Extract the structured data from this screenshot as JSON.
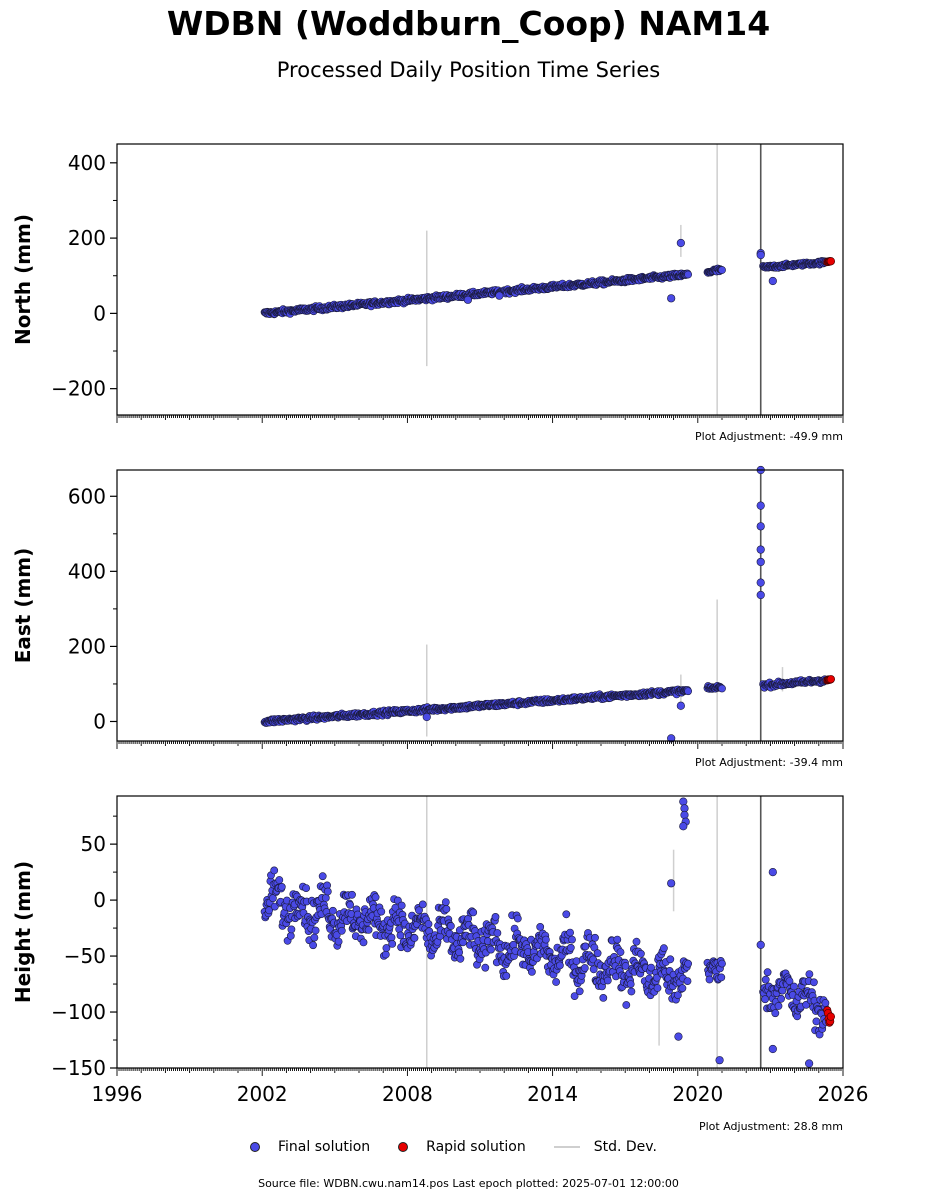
{
  "title": "WDBN (Woddburn_Coop) NAM14",
  "subtitle": "Processed Daily Position Time Series",
  "legend": {
    "final": "Final solution",
    "rapid": "Rapid solution",
    "std": "Std. Dev."
  },
  "footer": "Source file: WDBN.cwu.nam14.pos  Last epoch plotted: 2025-07-01 12:00:00",
  "colors": {
    "final": "#4a4ae6",
    "rapid": "#e60000",
    "stddev": "#cfcfcf",
    "event_line": "#555555"
  },
  "chart_data": [
    {
      "type": "scatter",
      "ylabel": "North (mm)",
      "xlim": [
        1996,
        2026
      ],
      "ylim": [
        -270,
        450
      ],
      "yticks": [
        -200,
        0,
        200,
        400
      ],
      "show_xtick_labels": false,
      "adjustment": "Plot Adjustment: -49.9 mm",
      "event_lines": [
        2022.6
      ],
      "final_segments": [
        {
          "x0": 2002.1,
          "x1": 2019.6,
          "y0": 0,
          "y1": 103,
          "scatter": 4
        },
        {
          "x0": 2020.4,
          "x1": 2021.0,
          "y0": 110,
          "y1": 116,
          "scatter": 4
        },
        {
          "x0": 2022.7,
          "x1": 2025.3,
          "y0": 122,
          "y1": 136,
          "scatter": 3
        }
      ],
      "rapid_segment": {
        "x0": 2025.35,
        "x1": 2025.5,
        "y0": 137,
        "y1": 139,
        "scatter": 1
      },
      "outliers": [
        {
          "x": 2019.3,
          "y": 187
        },
        {
          "x": 2018.9,
          "y": 40
        },
        {
          "x": 2022.6,
          "y": 160
        },
        {
          "x": 2022.6,
          "y": 155
        },
        {
          "x": 2023.1,
          "y": 86
        },
        {
          "x": 2010.5,
          "y": 36
        },
        {
          "x": 2011.8,
          "y": 47
        }
      ],
      "stddev_bars": [
        {
          "x": 2008.8,
          "lo": -140,
          "hi": 220
        },
        {
          "x": 2020.8,
          "lo": -270,
          "hi": 450
        },
        {
          "x": 2019.3,
          "lo": 150,
          "hi": 235
        }
      ]
    },
    {
      "type": "scatter",
      "ylabel": "East (mm)",
      "xlim": [
        1996,
        2026
      ],
      "ylim": [
        -52,
        670
      ],
      "yticks": [
        0,
        200,
        400,
        600
      ],
      "show_xtick_labels": false,
      "adjustment": "Plot Adjustment: -39.4 mm",
      "event_lines": [
        2022.6
      ],
      "final_segments": [
        {
          "x0": 2002.1,
          "x1": 2019.6,
          "y0": 0,
          "y1": 82,
          "scatter": 4
        },
        {
          "x0": 2020.4,
          "x1": 2021.0,
          "y0": 88,
          "y1": 92,
          "scatter": 3
        },
        {
          "x0": 2022.7,
          "x1": 2025.3,
          "y0": 96,
          "y1": 110,
          "scatter": 4
        }
      ],
      "rapid_segment": {
        "x0": 2025.35,
        "x1": 2025.5,
        "y0": 110,
        "y1": 112,
        "scatter": 1
      },
      "outliers": [
        {
          "x": 2022.6,
          "y": 670
        },
        {
          "x": 2022.6,
          "y": 575
        },
        {
          "x": 2022.6,
          "y": 520
        },
        {
          "x": 2022.6,
          "y": 458
        },
        {
          "x": 2022.6,
          "y": 425
        },
        {
          "x": 2022.6,
          "y": 370
        },
        {
          "x": 2022.6,
          "y": 337
        },
        {
          "x": 2019.3,
          "y": 42
        },
        {
          "x": 2018.9,
          "y": -45
        },
        {
          "x": 2008.8,
          "y": 12
        }
      ],
      "stddev_bars": [
        {
          "x": 2008.8,
          "lo": -40,
          "hi": 205
        },
        {
          "x": 2020.8,
          "lo": -52,
          "hi": 325
        },
        {
          "x": 2019.3,
          "lo": 30,
          "hi": 125
        },
        {
          "x": 2023.5,
          "lo": 80,
          "hi": 145
        }
      ]
    },
    {
      "type": "scatter",
      "ylabel": "Height (mm)",
      "xlim": [
        1996,
        2026
      ],
      "ylim": [
        -150,
        93
      ],
      "yticks": [
        -150,
        -100,
        -50,
        0,
        50
      ],
      "xticks": [
        1996,
        2002,
        2008,
        2014,
        2020,
        2026
      ],
      "show_xtick_labels": true,
      "adjustment": "Plot Adjustment: 28.8 mm",
      "event_lines": [
        2022.6
      ],
      "final_segments": [
        {
          "x0": 2002.1,
          "x1": 2019.6,
          "y0": 0,
          "y1": -72,
          "scatter": 13,
          "seasonal": 12
        },
        {
          "x0": 2020.4,
          "x1": 2021.0,
          "y0": -60,
          "y1": -65,
          "scatter": 9,
          "seasonal": 0
        },
        {
          "x0": 2022.7,
          "x1": 2025.3,
          "y0": -75,
          "y1": -95,
          "scatter": 12,
          "seasonal": 10
        }
      ],
      "rapid_segment": {
        "x0": 2025.35,
        "x1": 2025.5,
        "y0": -103,
        "y1": -112,
        "scatter": 4
      },
      "outliers": [
        {
          "x": 2019.4,
          "y": 88
        },
        {
          "x": 2019.45,
          "y": 82
        },
        {
          "x": 2019.45,
          "y": 76
        },
        {
          "x": 2019.5,
          "y": 70
        },
        {
          "x": 2019.4,
          "y": 66
        },
        {
          "x": 2018.9,
          "y": 15
        },
        {
          "x": 2019.2,
          "y": -122
        },
        {
          "x": 2020.9,
          "y": -143
        },
        {
          "x": 2023.1,
          "y": 25
        },
        {
          "x": 2023.1,
          "y": -133
        },
        {
          "x": 2024.6,
          "y": -146
        },
        {
          "x": 2022.6,
          "y": -40
        }
      ],
      "stddev_bars": [
        {
          "x": 2008.8,
          "lo": -150,
          "hi": 93
        },
        {
          "x": 2020.8,
          "lo": -150,
          "hi": 93
        },
        {
          "x": 2019.0,
          "lo": -10,
          "hi": 45
        },
        {
          "x": 2018.4,
          "lo": -130,
          "hi": -60
        }
      ]
    }
  ]
}
